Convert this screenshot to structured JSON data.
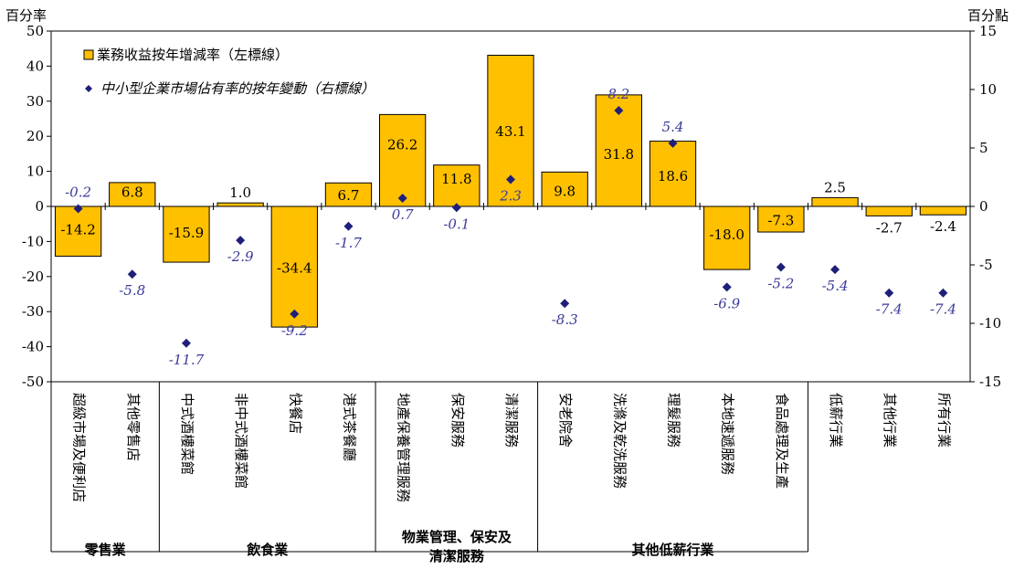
{
  "chart_data": {
    "type": "bar",
    "left_unit": "百分率",
    "right_unit": "百分點",
    "categories": [
      "超級市場及便利店",
      "其他零售店",
      "中式酒樓菜館",
      "非中式酒樓菜館",
      "快餐店",
      "港式茶餐廳",
      "地產保養管理服務",
      "保安服務",
      "清潔服務",
      "安老院舍",
      "洗滌及乾洗服務",
      "理髮服務",
      "本地速遞服務",
      "食品處理及生產",
      "低薪行業",
      "其他行業",
      "所有行業"
    ],
    "groups": [
      {
        "label": "零售業",
        "start": 0,
        "end": 1
      },
      {
        "label": "飲食業",
        "start": 2,
        "end": 5
      },
      {
        "label_lines": [
          "物業管理、保安及",
          "清潔服務"
        ],
        "start": 6,
        "end": 8
      },
      {
        "label": "其他低薪行業",
        "start": 9,
        "end": 13
      }
    ],
    "series": [
      {
        "name": "業務收益按年增減率（左標線）",
        "axis": "left",
        "kind": "bar",
        "color": "#FFC000",
        "values": [
          -14.2,
          6.8,
          -15.9,
          1.0,
          -34.4,
          6.7,
          26.2,
          11.8,
          43.1,
          9.8,
          31.8,
          18.6,
          -18.0,
          -7.3,
          2.5,
          -2.7,
          -2.4
        ],
        "labels": [
          "-14.2",
          "6.8",
          "-15.9",
          "1.0",
          "-34.4",
          "6.7",
          "26.2",
          "11.8",
          "43.1",
          "9.8",
          "31.8",
          "18.6",
          "-18.0",
          "-7.3",
          "2.5",
          "-2.7",
          "-2.4"
        ]
      },
      {
        "name": "中小型企業市場佔有率的按年變動（右標線）",
        "axis": "right",
        "kind": "marker",
        "color": "#1F1F7A",
        "values": [
          -0.2,
          -5.8,
          -11.7,
          -2.9,
          -9.2,
          -1.7,
          0.7,
          -0.1,
          2.3,
          -8.3,
          8.2,
          5.4,
          -6.9,
          -5.2,
          -5.4,
          -7.4,
          -7.4
        ],
        "labels": [
          "-0.2",
          "-5.8",
          "-11.7",
          "-2.9",
          "-9.2",
          "-1.7",
          "0.7",
          "-0.1",
          "2.3",
          "-8.3",
          "8.2",
          "5.4",
          "-6.9",
          "-5.2",
          "-5.4",
          "-7.4",
          "-7.4"
        ]
      }
    ],
    "y_left": {
      "min": -50,
      "max": 50,
      "ticks": [
        "50",
        "40",
        "30",
        "20",
        "10",
        "0",
        "-10",
        "-20",
        "-30",
        "-40",
        "-50"
      ]
    },
    "y_right": {
      "min": -15,
      "max": 15,
      "ticks": [
        "15",
        "10",
        "5",
        "0",
        "-5",
        "-10",
        "-15"
      ]
    },
    "legend_position": "top-left",
    "grid": false
  }
}
